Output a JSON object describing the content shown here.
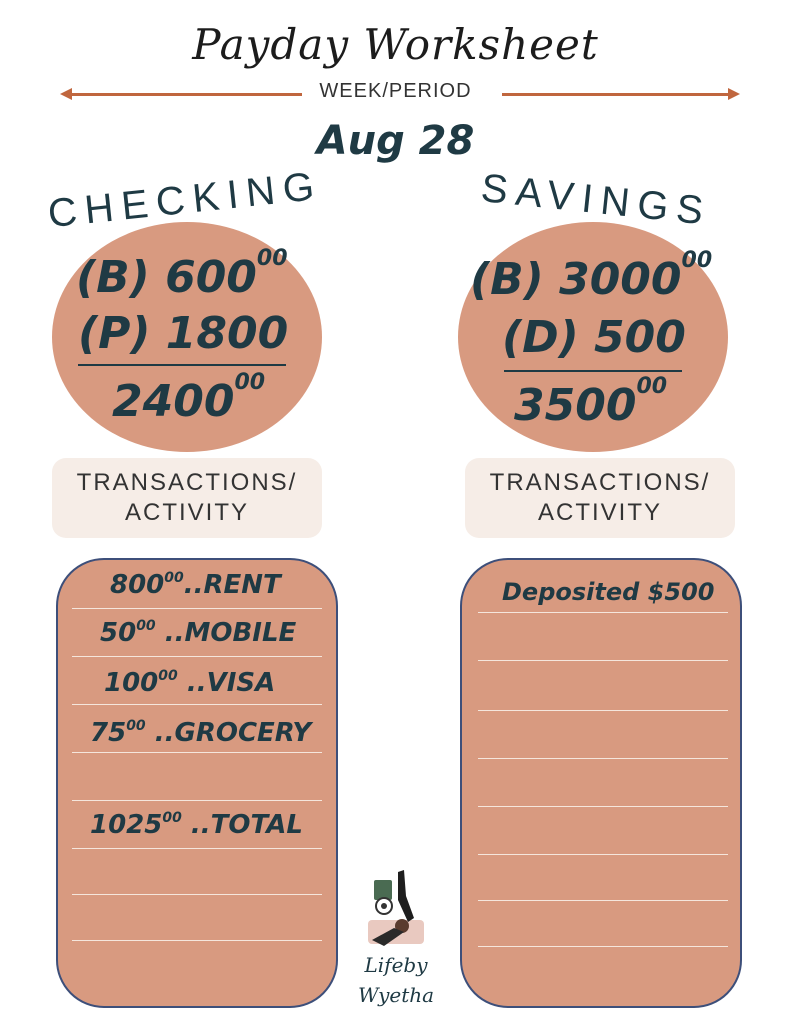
{
  "header": {
    "title": "Payday Worksheet",
    "period_label": "WEEK/PERIOD",
    "date": "Aug 28"
  },
  "colors": {
    "accent": "#d89a80",
    "arrow": "#c0663e",
    "ink": "#1f3a44",
    "box": "#f6ede7",
    "border": "#3d4f7a"
  },
  "checking": {
    "title": "CHECKING",
    "balance_label": "(B) 600",
    "balance_cents": "00",
    "pay_label": "(P) 1800",
    "total": "2400",
    "total_cents": "00",
    "transactions_label_1": "TRANSACTIONS/",
    "transactions_label_2": "ACTIVITY",
    "entries": [
      {
        "amount": "800",
        "cents": "00",
        "label": "..RENT"
      },
      {
        "amount": "50",
        "cents": "00",
        "label": "..MOBILE"
      },
      {
        "amount": "100",
        "cents": "00",
        "label": "..VISA"
      },
      {
        "amount": "75",
        "cents": "00",
        "label": "..GROCERY"
      },
      {
        "amount": "1025",
        "cents": "00",
        "label": "..TOTAL"
      }
    ]
  },
  "savings": {
    "title": "SAVINGS",
    "balance_label": "(B) 3000",
    "balance_cents": "00",
    "deposit_label": "(D) 500",
    "total": "3500",
    "total_cents": "00",
    "transactions_label_1": "TRANSACTIONS/",
    "transactions_label_2": "ACTIVITY",
    "entries": [
      {
        "label": "Deposited $500"
      }
    ]
  },
  "logo": {
    "line1": "Lifeby",
    "line2": "Wyetha"
  }
}
